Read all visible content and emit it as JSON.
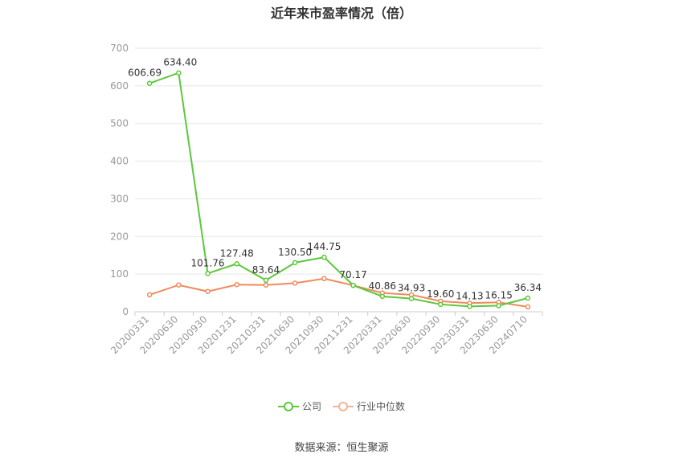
{
  "title": "近年来市盈率情况（倍）",
  "source": "数据来源：恒生聚源",
  "colors": {
    "company": "#5cc83a",
    "industry": "#f08a5d",
    "grid": "#e6e6e6",
    "axis": "#cccccc"
  },
  "chart_data": {
    "type": "line",
    "title": "近年来市盈率情况（倍）",
    "categories": [
      "20200331",
      "20200630",
      "20200930",
      "20201231",
      "20210331",
      "20210630",
      "20210930",
      "20211231",
      "20220331",
      "20220630",
      "20220930",
      "20230331",
      "20230630",
      "20240710"
    ],
    "ylim": [
      0,
      700
    ],
    "yticks": [
      0,
      100,
      200,
      300,
      400,
      500,
      600,
      700
    ],
    "grid": true,
    "legend_position": "bottom",
    "series": [
      {
        "name": "公司",
        "color": "#5cc83a",
        "values": [
          606.69,
          634.4,
          101.76,
          127.48,
          83.64,
          130.5,
          144.75,
          70.17,
          40.86,
          34.93,
          19.6,
          14.13,
          16.15,
          36.34
        ],
        "labels": [
          "606.69",
          "634.40",
          "101.76",
          "127.48",
          "83.64",
          "130.50",
          "144.75",
          "70.17",
          "40.86",
          "34.93",
          "19.60",
          "14.13",
          "16.15",
          "36.34"
        ]
      },
      {
        "name": "行业中位数",
        "color": "#f08a5d",
        "values": [
          45,
          71,
          54,
          72,
          71,
          76,
          88,
          70,
          50,
          45,
          28,
          23,
          25,
          13
        ]
      }
    ]
  }
}
